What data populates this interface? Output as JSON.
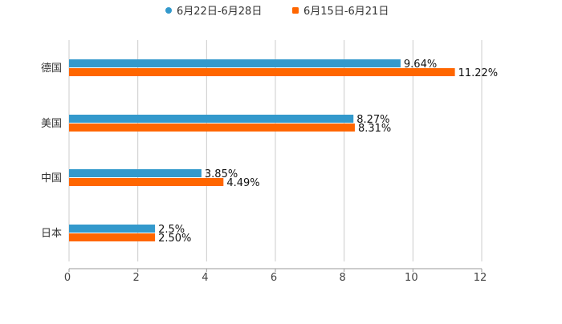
{
  "chart_data": {
    "type": "bar",
    "orientation": "horizontal",
    "title": "",
    "xlabel": "",
    "ylabel": "",
    "categories": [
      "德国",
      "美国",
      "中国",
      "日本"
    ],
    "series": [
      {
        "name": "6月22日-6月28日",
        "color": "#3399cc",
        "values": [
          9.64,
          8.27,
          3.85,
          2.5
        ],
        "labels": [
          "9.64%",
          "8.27%",
          "3.85%",
          "2.5%"
        ]
      },
      {
        "name": "6月15日-6月21日",
        "color": "#ff6600",
        "values": [
          11.22,
          8.31,
          4.49,
          2.5
        ],
        "labels": [
          "11.22%",
          "8.31%",
          "4.49%",
          "2.50%"
        ]
      }
    ],
    "xlim": [
      0,
      12
    ],
    "xticks": [
      "0",
      "2",
      "4",
      "6",
      "8",
      "10",
      "12"
    ],
    "grid": true,
    "legend_position": "top-center"
  }
}
